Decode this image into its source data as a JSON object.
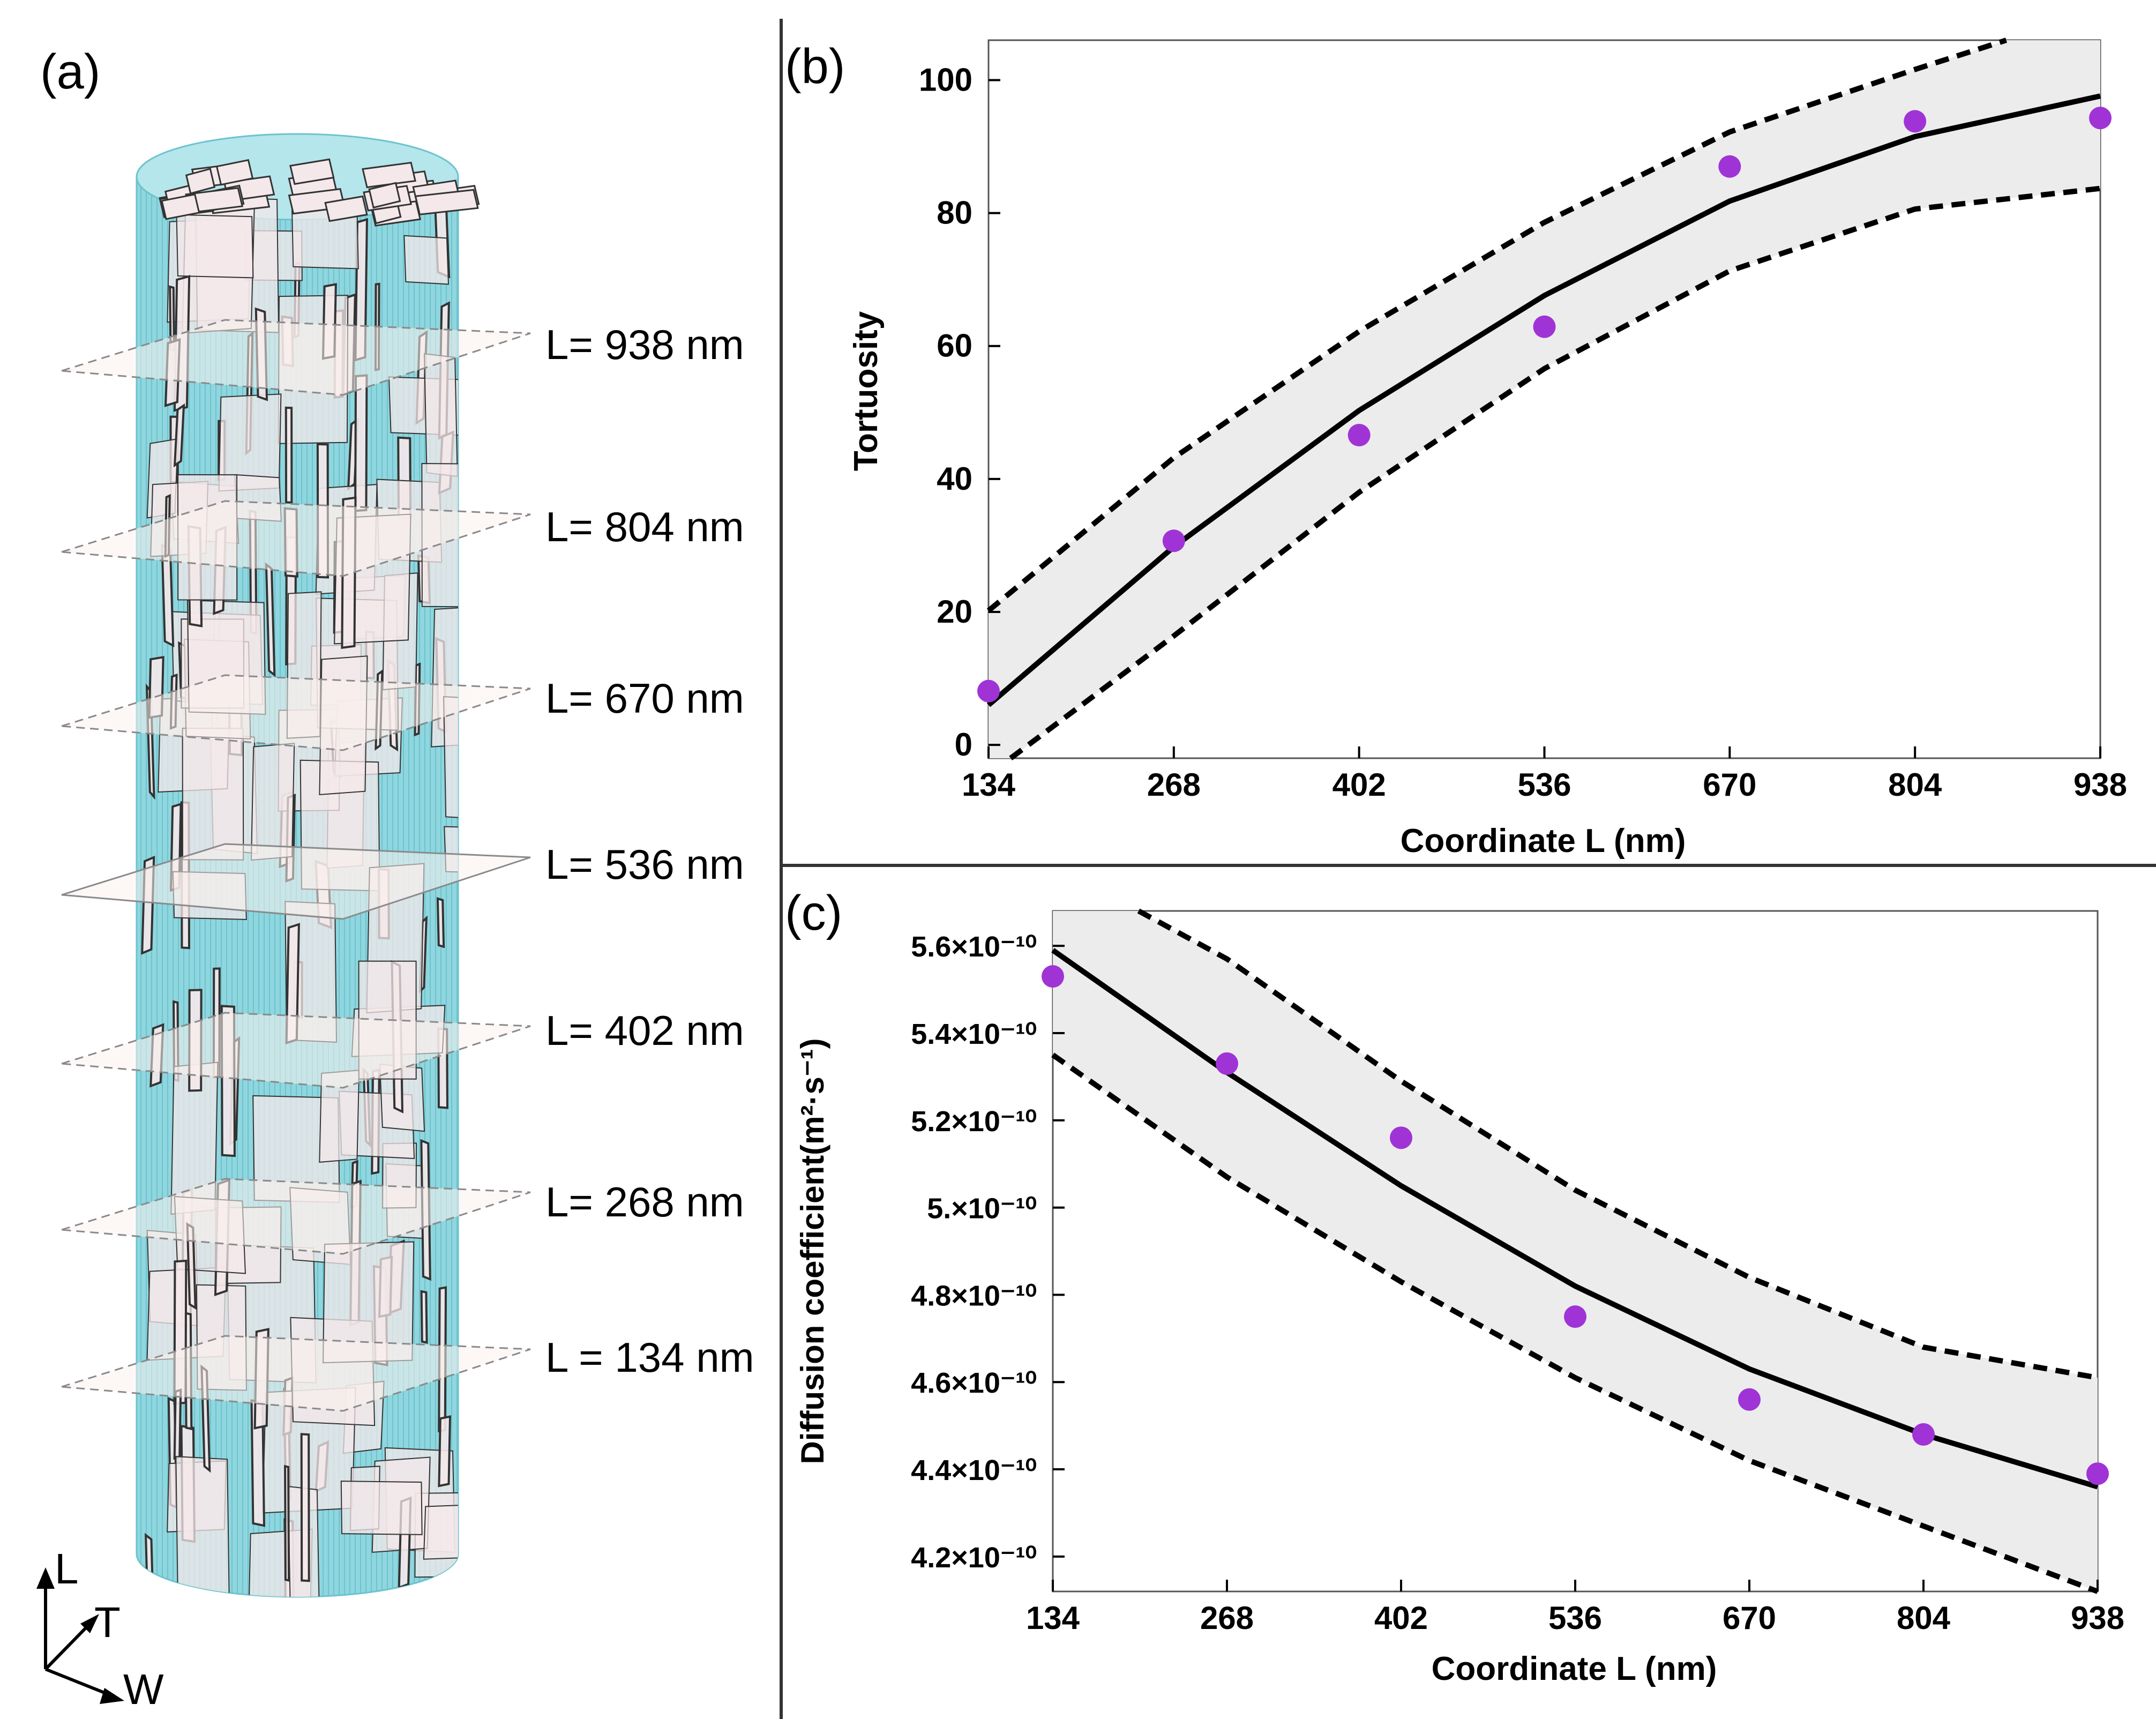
{
  "panel_a": {
    "letter": "(a)",
    "slice_labels": [
      "L= 938 nm",
      "L= 804 nm",
      "L= 670 nm",
      "L= 536 nm",
      "L= 402 nm",
      "L= 268 nm",
      "L = 134 nm"
    ],
    "axis_triad": [
      "L",
      "T",
      "W"
    ],
    "colors": {
      "cylinder": "#86d3dc",
      "platelet": "#f4e8ea",
      "edge": "#333333"
    }
  },
  "chart_data": [
    {
      "panel": "(b)",
      "type": "scatter",
      "xlabel": "Coordinate L (nm)",
      "ylabel": "Tortuosity",
      "xlim": [
        134,
        938
      ],
      "ylim": [
        -2,
        106
      ],
      "x_ticks": [
        "134",
        "268",
        "402",
        "536",
        "670",
        "804",
        "938"
      ],
      "y_ticks": [
        "0",
        "20",
        "40",
        "60",
        "80",
        "100"
      ],
      "grid": false,
      "points": {
        "x": [
          134,
          268,
          402,
          536,
          670,
          804,
          938
        ],
        "y": [
          8.1,
          30.7,
          46.6,
          62.9,
          87.0,
          93.8,
          94.3
        ]
      },
      "fit": {
        "x": [
          134,
          268,
          402,
          536,
          670,
          804,
          938
        ],
        "y": [
          6.0,
          29.8,
          50.3,
          67.6,
          81.8,
          91.5,
          97.6
        ]
      },
      "band_upper": {
        "x": [
          134,
          268,
          402,
          536,
          670,
          804,
          870
        ],
        "y": [
          20.2,
          43.2,
          62.2,
          78.6,
          92.2,
          101.6,
          106.0
        ]
      },
      "band_lower": {
        "x": [
          150,
          268,
          402,
          536,
          670,
          804,
          938
        ],
        "y": [
          -2.0,
          16.4,
          38.0,
          56.6,
          71.3,
          80.6,
          83.7
        ]
      },
      "colors": {
        "points": "#a033d6",
        "fit": "#000000",
        "band": "#ececec"
      }
    },
    {
      "panel": "(c)",
      "type": "scatter",
      "xlabel": "Coordinate L (nm)",
      "ylabel": "Diffusion coefficient(m²·s⁻¹)",
      "xlim": [
        134,
        938
      ],
      "ylim": [
        4.12e-10,
        5.68e-10
      ],
      "x_ticks": [
        "134",
        "268",
        "402",
        "536",
        "670",
        "804",
        "938"
      ],
      "y_ticks": [
        "5.6×10⁻¹⁰",
        "5.4×10⁻¹⁰",
        "5.2×10⁻¹⁰",
        "5.×10⁻¹⁰",
        "4.8×10⁻¹⁰",
        "4.6×10⁻¹⁰",
        "4.4×10⁻¹⁰",
        "4.2×10⁻¹⁰"
      ],
      "y_tick_values": [
        5.6e-10,
        5.4e-10,
        5.2e-10,
        5e-10,
        4.8e-10,
        4.6e-10,
        4.4e-10,
        4.2e-10
      ],
      "grid": false,
      "points": {
        "x": [
          134,
          268,
          402,
          536,
          670,
          804,
          938
        ],
        "y": [
          5.53e-10,
          5.33e-10,
          5.16e-10,
          4.75e-10,
          4.56e-10,
          4.48e-10,
          4.39e-10
        ]
      },
      "fit": {
        "x": [
          134,
          268,
          402,
          536,
          670,
          804,
          938
        ],
        "y": [
          5.59e-10,
          5.31e-10,
          5.05e-10,
          4.82e-10,
          4.63e-10,
          4.48e-10,
          4.36e-10
        ]
      },
      "band_upper": {
        "x": [
          200,
          268,
          402,
          536,
          670,
          804,
          938
        ],
        "y": [
          5.68e-10,
          5.57e-10,
          5.29e-10,
          5.04e-10,
          4.84e-10,
          4.68e-10,
          4.61e-10
        ]
      },
      "band_lower": {
        "x": [
          134,
          268,
          402,
          536,
          670,
          804,
          938
        ],
        "y": [
          5.35e-10,
          5.07e-10,
          4.83e-10,
          4.61e-10,
          4.42e-10,
          4.27e-10,
          4.12e-10
        ]
      },
      "colors": {
        "points": "#a033d6",
        "fit": "#000000",
        "band": "#ececec"
      }
    }
  ]
}
